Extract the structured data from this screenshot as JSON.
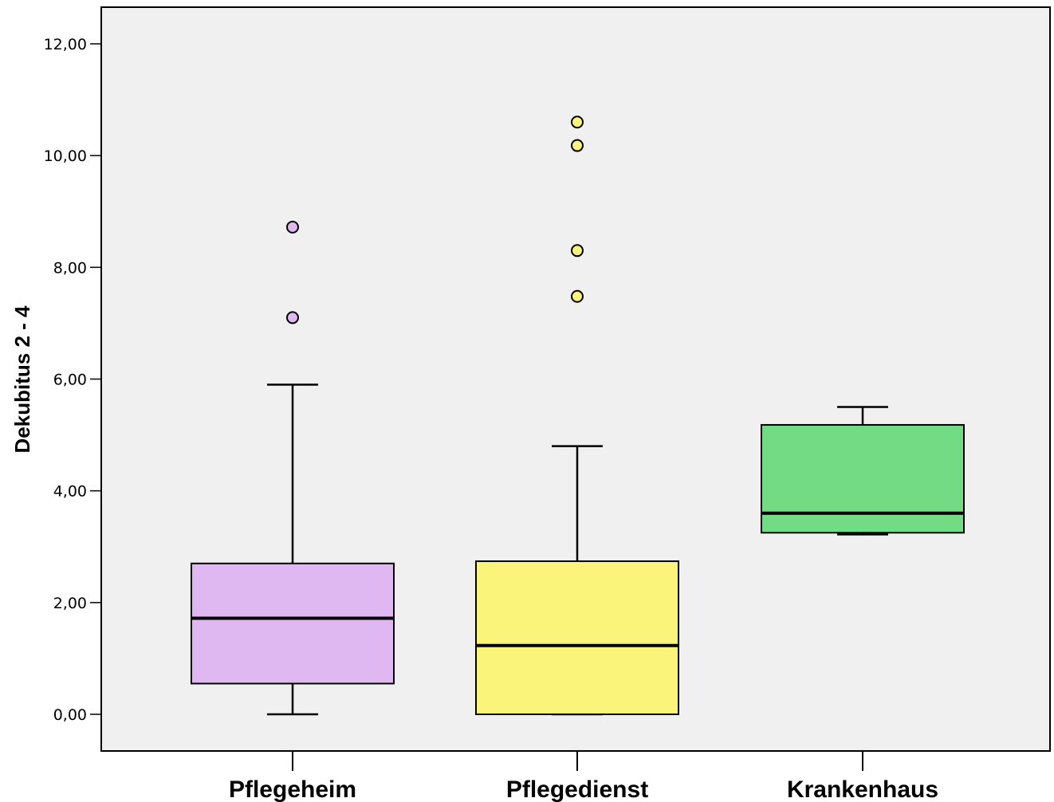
{
  "chart_data": {
    "type": "boxplot",
    "ylabel": "Dekubitus 2 - 4",
    "ylim": [
      -0.65,
      12.6
    ],
    "yticks": [
      0,
      2,
      4,
      6,
      8,
      10,
      12
    ],
    "ytick_labels": [
      "0,00",
      "2,00",
      "4,00",
      "6,00",
      "8,00",
      "10,00",
      "12,00"
    ],
    "grid": false,
    "categories": [
      "Pflegeheim",
      "Pflegedienst",
      "Krankenhaus"
    ],
    "colors": [
      "#dfb8f2",
      "#faf57a",
      "#72db84"
    ],
    "boxes": [
      {
        "category": "Pflegeheim",
        "whisker_low": 0.0,
        "q1": 0.55,
        "median": 1.72,
        "q3": 2.7,
        "whisker_high": 5.9,
        "outliers": [
          7.1,
          8.72
        ]
      },
      {
        "category": "Pflegedienst",
        "whisker_low": 0.0,
        "q1": 0.0,
        "median": 1.23,
        "q3": 2.74,
        "whisker_high": 4.8,
        "outliers": [
          7.48,
          8.3,
          10.18,
          10.6
        ]
      },
      {
        "category": "Krankenhaus",
        "whisker_low": 3.22,
        "q1": 3.25,
        "median": 3.6,
        "q3": 5.18,
        "whisker_high": 5.5,
        "outliers": []
      }
    ]
  }
}
